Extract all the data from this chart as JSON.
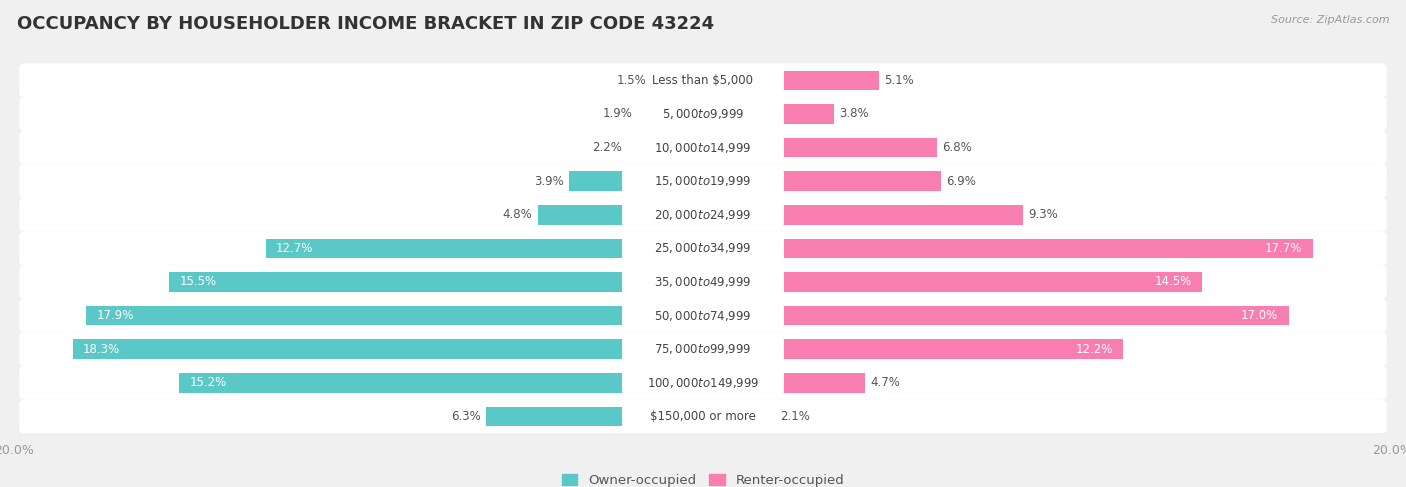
{
  "title": "OCCUPANCY BY HOUSEHOLDER INCOME BRACKET IN ZIP CODE 43224",
  "source": "Source: ZipAtlas.com",
  "categories": [
    "Less than $5,000",
    "$5,000 to $9,999",
    "$10,000 to $14,999",
    "$15,000 to $19,999",
    "$20,000 to $24,999",
    "$25,000 to $34,999",
    "$35,000 to $49,999",
    "$50,000 to $74,999",
    "$75,000 to $99,999",
    "$100,000 to $149,999",
    "$150,000 or more"
  ],
  "owner_values": [
    1.5,
    1.9,
    2.2,
    3.9,
    4.8,
    12.7,
    15.5,
    17.9,
    18.3,
    15.2,
    6.3
  ],
  "renter_values": [
    5.1,
    3.8,
    6.8,
    6.9,
    9.3,
    17.7,
    14.5,
    17.0,
    12.2,
    4.7,
    2.1
  ],
  "owner_color": "#5BC8C8",
  "renter_color": "#F87EB0",
  "background_color": "#f0f0f0",
  "bar_background": "#ffffff",
  "row_background": "#e8e8e8",
  "x_max": 20.0,
  "title_fontsize": 13,
  "label_fontsize": 8.5,
  "tick_fontsize": 9,
  "legend_fontsize": 9.5,
  "inside_label_threshold": 10.0
}
